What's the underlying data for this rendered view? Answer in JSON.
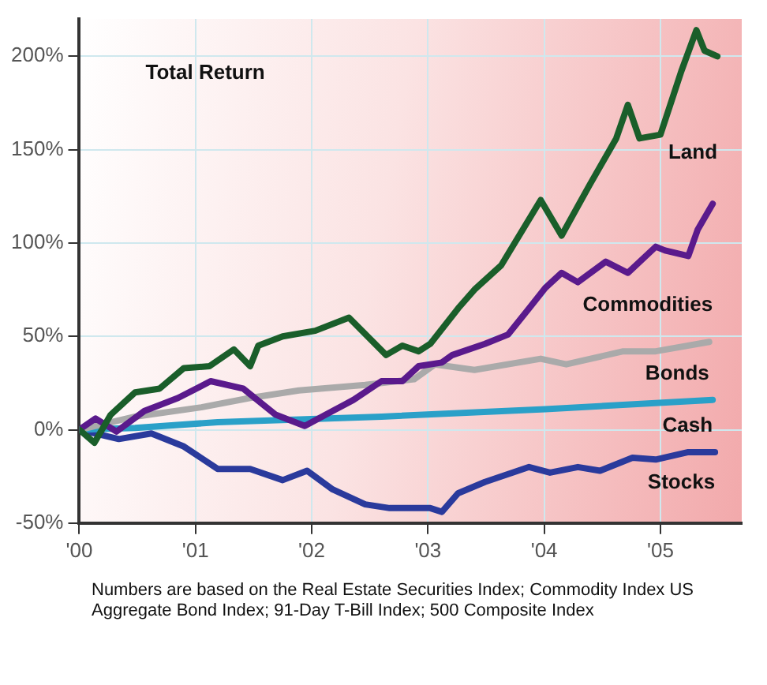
{
  "chart_data": {
    "type": "line",
    "title": "Total Return",
    "annotations": [
      "Numbers are based on the Real Estate Securities Index; Commodity Index US Aggregate Bond Index; 91-Day T-Bill Index; 500 Composite Index"
    ],
    "xlim": [
      2000,
      2005.7
    ],
    "ylim": [
      -50,
      220
    ],
    "xticks": [
      {
        "value": 2000,
        "label": "'00"
      },
      {
        "value": 2001,
        "label": "'01"
      },
      {
        "value": 2002,
        "label": "'02"
      },
      {
        "value": 2003,
        "label": "'03"
      },
      {
        "value": 2004,
        "label": "'04"
      },
      {
        "value": 2005,
        "label": "'05"
      }
    ],
    "yticks": [
      {
        "value": -50,
        "label": "-50%"
      },
      {
        "value": 0,
        "label": "0%"
      },
      {
        "value": 50,
        "label": "50%"
      },
      {
        "value": 100,
        "label": "100%"
      },
      {
        "value": 150,
        "label": "150%"
      },
      {
        "value": 200,
        "label": "200%"
      }
    ],
    "grid": true,
    "legend": false,
    "marker": "none",
    "line_style": "solid",
    "series": [
      {
        "name": "Land",
        "color": "#1a5e2a",
        "x": [
          2000,
          2000.13,
          2000.27,
          2000.48,
          2000.69,
          2000.9,
          2001.12,
          2001.33,
          2001.47,
          2001.54,
          2001.75,
          2002.03,
          2002.32,
          2002.64,
          2002.78,
          2002.92,
          2003.02,
          2003.26,
          2003.4,
          2003.63,
          2003.97,
          2004.15,
          2004.39,
          2004.62,
          2004.72,
          2004.82,
          2005,
          2005.18,
          2005.31,
          2005.38,
          2005.49
        ],
        "values": [
          0,
          -7,
          8,
          20,
          22,
          33,
          34,
          43,
          34,
          45,
          50,
          53,
          60,
          40,
          45,
          42,
          46,
          65,
          75,
          88,
          123,
          104,
          131,
          156,
          174,
          156,
          158,
          192,
          214,
          203,
          200
        ]
      },
      {
        "name": "Commodities",
        "color": "#5a1a8c",
        "x": [
          2000,
          2000.14,
          2000.32,
          2000.56,
          2000.85,
          2001.13,
          2001.41,
          2001.69,
          2001.94,
          2002.18,
          2002.36,
          2002.6,
          2002.78,
          2002.92,
          2003.12,
          2003.21,
          2003.49,
          2003.69,
          2003.87,
          2004.01,
          2004.15,
          2004.29,
          2004.53,
          2004.72,
          2004.96,
          2005.04,
          2005.24,
          2005.32,
          2005.45
        ],
        "values": [
          0,
          6,
          -1,
          10,
          17,
          26,
          22,
          8,
          2,
          10,
          16,
          26,
          26,
          34,
          36,
          40,
          46,
          51,
          65,
          76,
          84,
          79,
          90,
          84,
          98,
          96,
          93,
          107,
          121
        ]
      },
      {
        "name": "Bonds",
        "color": "#aaaaaa",
        "x": [
          2000,
          2000.48,
          2001.05,
          2001.47,
          2001.89,
          2002.46,
          2002.88,
          2003.06,
          2003.4,
          2003.97,
          2004.19,
          2004.68,
          2004.96,
          2005.42
        ],
        "values": [
          0,
          7,
          12,
          17,
          21,
          24,
          27,
          35,
          32,
          38,
          35,
          42,
          42,
          47
        ]
      },
      {
        "name": "Cash",
        "color": "#2aa0c8",
        "x": [
          2000,
          2000.48,
          2001.19,
          2002.6,
          2004.01,
          2005.45
        ],
        "values": [
          0,
          1,
          4,
          7,
          11,
          16
        ]
      },
      {
        "name": "Stocks",
        "color": "#2a3a9c",
        "x": [
          2000,
          2000.34,
          2000.62,
          2000.9,
          2001.19,
          2001.47,
          2001.75,
          2001.96,
          2002.18,
          2002.46,
          2002.67,
          2003.02,
          2003.12,
          2003.26,
          2003.49,
          2003.87,
          2004.05,
          2004.29,
          2004.48,
          2004.76,
          2004.96,
          2005.24,
          2005.47
        ],
        "values": [
          0,
          -5,
          -2,
          -9,
          -21,
          -21,
          -27,
          -22,
          -32,
          -40,
          -42,
          -42,
          -44,
          -34,
          -28,
          -20,
          -23,
          -20,
          -22,
          -15,
          -16,
          -12,
          -12
        ]
      }
    ]
  }
}
